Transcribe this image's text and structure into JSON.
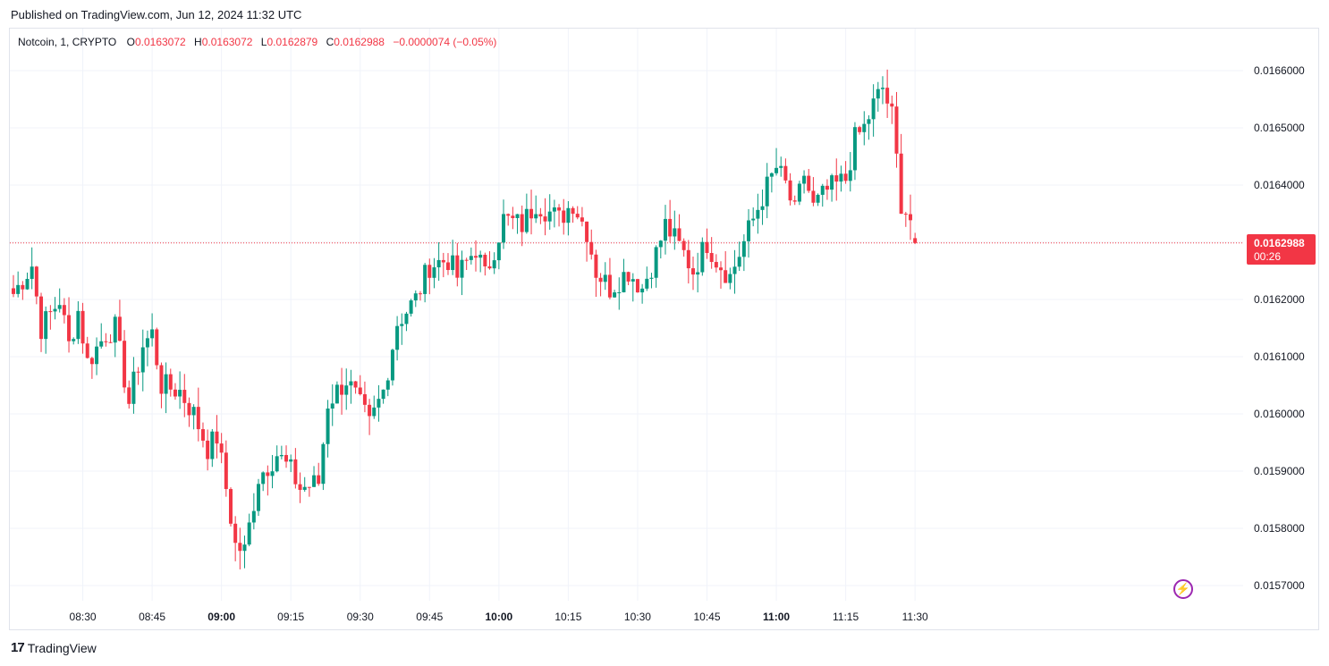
{
  "header": {
    "published": "Published on TradingView.com, Jun 12, 2024 11:32 UTC"
  },
  "legend": {
    "symbol": "Notcoin, 1, CRYPTO",
    "open_label": "O",
    "open": "0.0163072",
    "high_label": "H",
    "high": "0.0163072",
    "low_label": "L",
    "low": "0.0162879",
    "close_label": "C",
    "close": "0.0162988",
    "change": "−0.0000074 (−0.05%)"
  },
  "price_badge": {
    "price": "0.0162988",
    "countdown": "00:26"
  },
  "footer": {
    "brand": "TradingView",
    "logo_icon": "tradingview-logo-icon"
  },
  "colors": {
    "up": "#089981",
    "down": "#f23645",
    "grid": "#f0f3fa",
    "axis_text": "#131722"
  },
  "chart_data": {
    "type": "candlestick",
    "title": "Notcoin, 1, CRYPTO",
    "ylim": [
      0.01569,
      0.01661
    ],
    "y_ticks": [
      "0.0166000",
      "0.0165000",
      "0.0164000",
      "0.0163000",
      "0.0162000",
      "0.0161000",
      "0.0160000",
      "0.0159000",
      "0.0158000",
      "0.0157000"
    ],
    "y_tick_values": [
      0.0166,
      0.0165,
      0.0164,
      0.0163,
      0.0162,
      0.0161,
      0.016,
      0.0159,
      0.0158,
      0.0157
    ],
    "x_ticks": [
      {
        "label": "08:30",
        "bold": false,
        "index": 15
      },
      {
        "label": "08:45",
        "bold": false,
        "index": 30
      },
      {
        "label": "09:00",
        "bold": true,
        "index": 45
      },
      {
        "label": "09:15",
        "bold": false,
        "index": 60
      },
      {
        "label": "09:30",
        "bold": false,
        "index": 75
      },
      {
        "label": "09:45",
        "bold": false,
        "index": 90
      },
      {
        "label": "10:00",
        "bold": true,
        "index": 105
      },
      {
        "label": "10:15",
        "bold": false,
        "index": 120
      },
      {
        "label": "10:30",
        "bold": false,
        "index": 135
      },
      {
        "label": "10:45",
        "bold": false,
        "index": 150
      },
      {
        "label": "11:00",
        "bold": true,
        "index": 165
      },
      {
        "label": "11:15",
        "bold": false,
        "index": 180
      },
      {
        "label": "11:30",
        "bold": false,
        "index": 195
      }
    ],
    "last_price": 0.0162988,
    "candle_count": 196,
    "anchors": [
      [
        0,
        0.01621
      ],
      [
        4,
        0.01626
      ],
      [
        6,
        0.01615
      ],
      [
        10,
        0.0162
      ],
      [
        12,
        0.01612
      ],
      [
        14,
        0.01618
      ],
      [
        16,
        0.01609
      ],
      [
        20,
        0.01614
      ],
      [
        22,
        0.01615
      ],
      [
        25,
        0.01602
      ],
      [
        28,
        0.01612
      ],
      [
        30,
        0.01614
      ],
      [
        32,
        0.01605
      ],
      [
        36,
        0.01604
      ],
      [
        39,
        0.016
      ],
      [
        42,
        0.01594
      ],
      [
        44,
        0.01596
      ],
      [
        46,
        0.01587
      ],
      [
        48,
        0.01577
      ],
      [
        50,
        0.01576
      ],
      [
        53,
        0.01589
      ],
      [
        57,
        0.01593
      ],
      [
        60,
        0.0159
      ],
      [
        62,
        0.01587
      ],
      [
        66,
        0.01588
      ],
      [
        68,
        0.01602
      ],
      [
        72,
        0.01606
      ],
      [
        74,
        0.01603
      ],
      [
        77,
        0.01598
      ],
      [
        80,
        0.01604
      ],
      [
        83,
        0.01616
      ],
      [
        87,
        0.0162
      ],
      [
        90,
        0.01626
      ],
      [
        94,
        0.01627
      ],
      [
        96,
        0.01624
      ],
      [
        100,
        0.01629
      ],
      [
        102,
        0.01624
      ],
      [
        106,
        0.01634
      ],
      [
        110,
        0.01633
      ],
      [
        113,
        0.01637
      ],
      [
        118,
        0.01634
      ],
      [
        121,
        0.01637
      ],
      [
        124,
        0.01632
      ],
      [
        126,
        0.01625
      ],
      [
        129,
        0.01622
      ],
      [
        133,
        0.01625
      ],
      [
        136,
        0.01622
      ],
      [
        139,
        0.01628
      ],
      [
        141,
        0.01633
      ],
      [
        145,
        0.01628
      ],
      [
        147,
        0.01625
      ],
      [
        150,
        0.0163
      ],
      [
        152,
        0.01627
      ],
      [
        155,
        0.01624
      ],
      [
        158,
        0.0163
      ],
      [
        162,
        0.01638
      ],
      [
        165,
        0.01643
      ],
      [
        167,
        0.0164
      ],
      [
        169,
        0.01635
      ],
      [
        171,
        0.01642
      ],
      [
        173,
        0.01636
      ],
      [
        176,
        0.01639
      ],
      [
        180,
        0.01641
      ],
      [
        182,
        0.01648
      ],
      [
        184,
        0.0165
      ],
      [
        186,
        0.01654
      ],
      [
        188,
        0.01657
      ],
      [
        190,
        0.01652
      ],
      [
        192,
        0.01637
      ],
      [
        194,
        0.01634
      ],
      [
        196,
        0.0163
      ],
      [
        198,
        0.01629
      ]
    ]
  }
}
